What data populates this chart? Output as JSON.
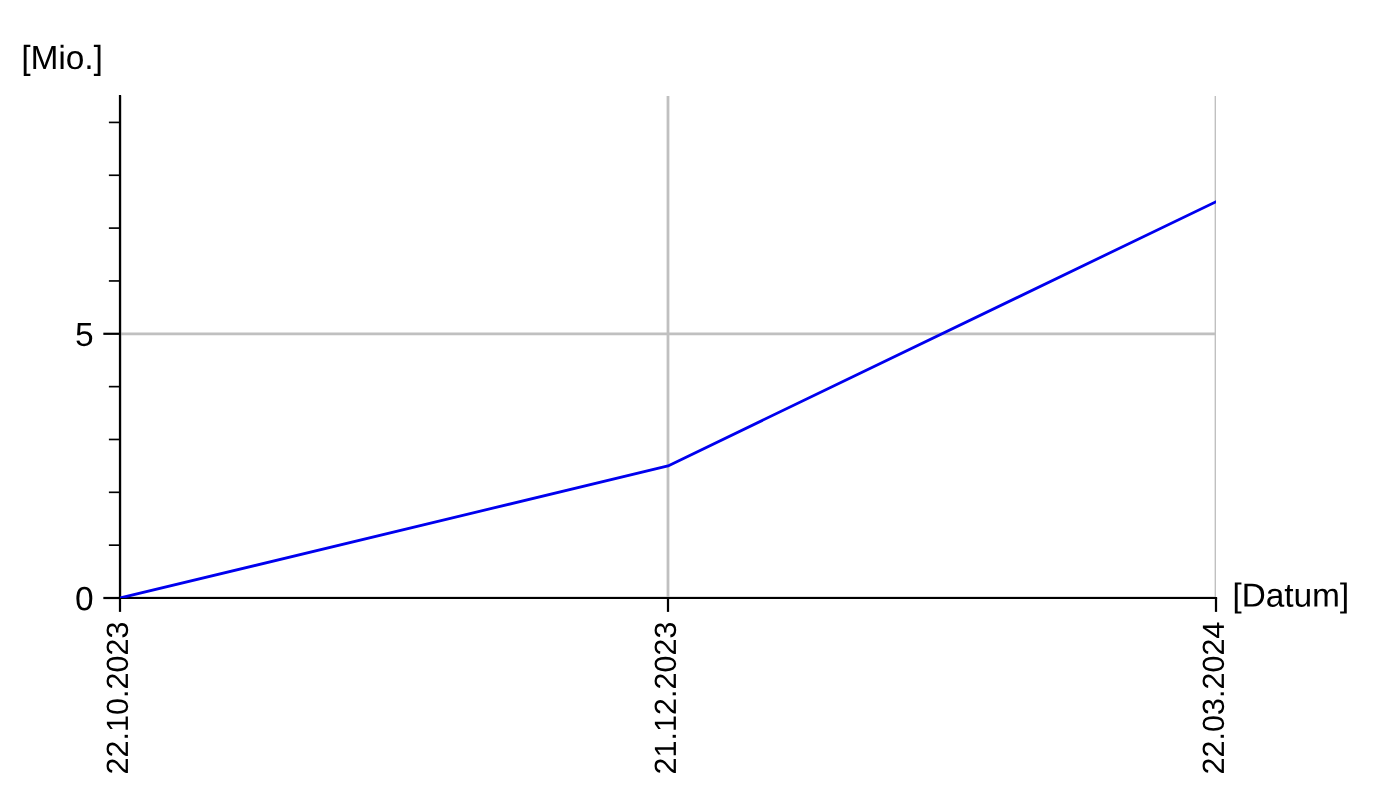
{
  "chart_data": {
    "type": "line",
    "categories": [
      "22.10.2023",
      "21.12.2023",
      "22.03.2024"
    ],
    "series": [
      {
        "color": "#0000ee",
        "values": [
          0,
          2.5,
          7.5
        ]
      }
    ],
    "xlabel": "[Datum]",
    "ylabel": "[Mio.]",
    "ylim": [
      0,
      9.5
    ],
    "yticks": [
      0,
      {
        "value": 1,
        "label": null
      },
      {
        "value": 2,
        "label": null
      },
      {
        "value": 3,
        "label": null
      },
      {
        "value": 4,
        "label": null
      },
      5,
      {
        "value": 6,
        "label": null
      },
      {
        "value": 7,
        "label": null
      },
      {
        "value": 8,
        "label": null
      },
      {
        "value": 9,
        "label": null
      }
    ],
    "grid": true,
    "marker": "none",
    "line_style": "solid"
  }
}
